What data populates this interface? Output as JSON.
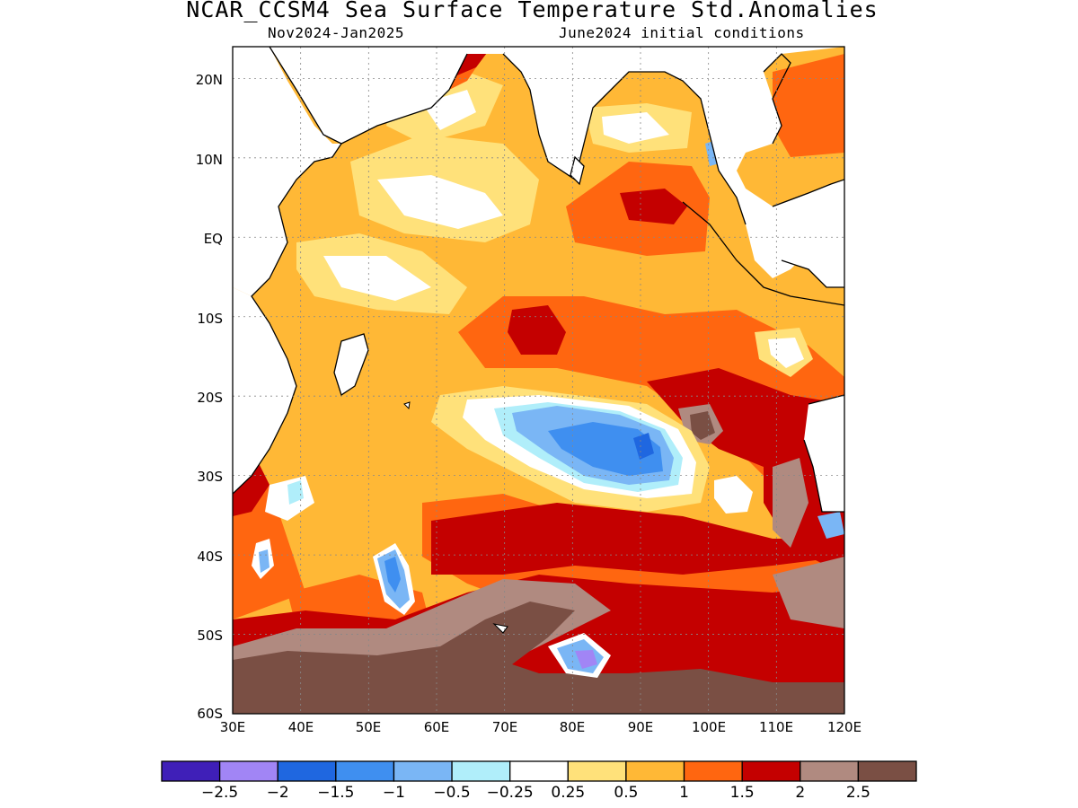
{
  "title": "NCAR_CCSM4 Sea Surface Temperature Std.Anomalies",
  "period": "Nov2024-Jan2025",
  "initial_conditions": "June2024 initial conditions",
  "map": {
    "lon_range": [
      30,
      120
    ],
    "lat_range": [
      -60,
      24
    ],
    "lon_ticks": [
      "30E",
      "40E",
      "50E",
      "60E",
      "70E",
      "80E",
      "90E",
      "100E",
      "110E",
      "120E"
    ],
    "lat_ticks": [
      "20N",
      "10N",
      "EQ",
      "10S",
      "20S",
      "30S",
      "40S",
      "50S",
      "60S"
    ],
    "grid": true,
    "land_color": "#ffffff",
    "coastline_color": "#000000"
  },
  "colorbar": {
    "colors": [
      "#3f1fb8",
      "#a185f5",
      "#1f67e0",
      "#3f8ff0",
      "#7ab6f5",
      "#b0eefa",
      "#ffffff",
      "#ffe17a",
      "#ffb836",
      "#ff6610",
      "#c40000",
      "#b08a80",
      "#7a4f44"
    ],
    "labels": [
      "-2.5",
      "-2",
      "-1.5",
      "-1",
      "-0.5",
      "-0.25",
      "0.25",
      "0.5",
      "1",
      "1.5",
      "2",
      "2.5"
    ]
  }
}
